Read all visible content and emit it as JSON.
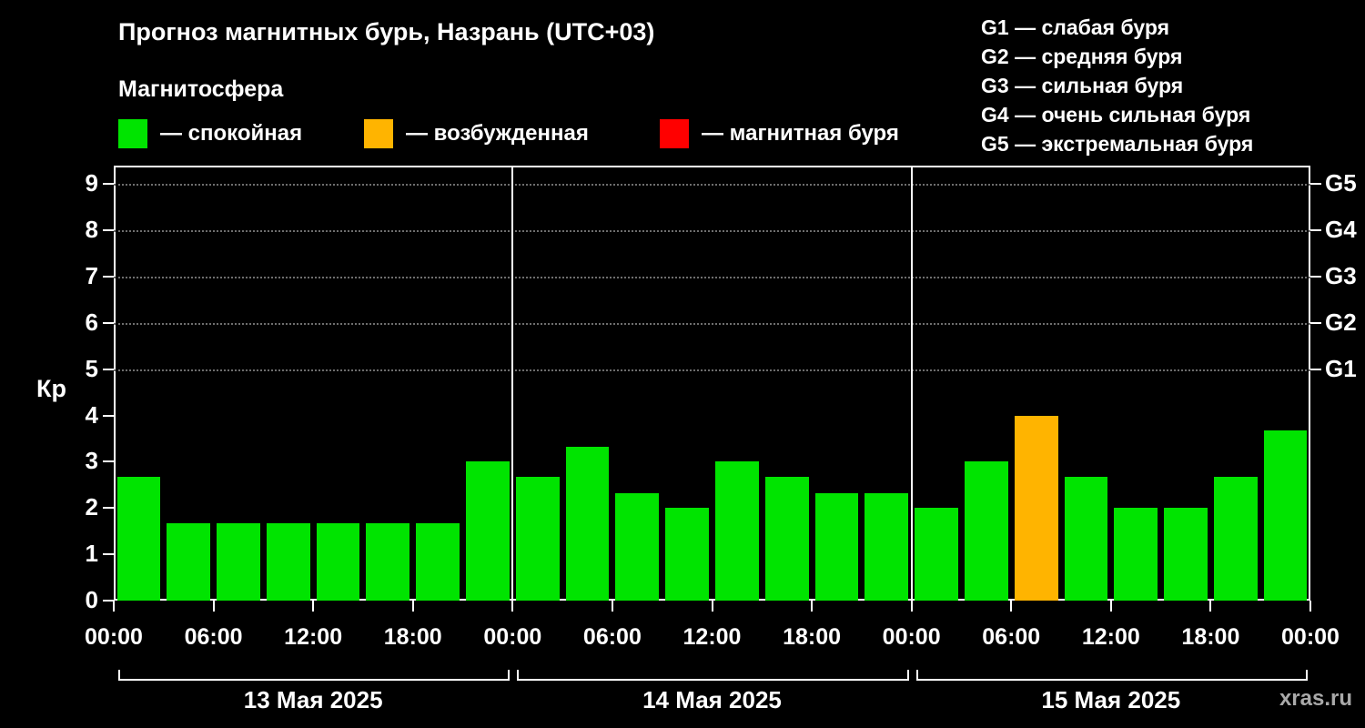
{
  "title": "Прогноз магнитных бурь, Назрань (UTC+03)",
  "subtitle": "Магнитосфера",
  "legend": {
    "items": [
      {
        "key": "quiet",
        "label": "— спокойная",
        "color": "#00e400"
      },
      {
        "key": "excited",
        "label": "— возбужденная",
        "color": "#ffb400"
      },
      {
        "key": "storm",
        "label": "— магнитная буря",
        "color": "#ff0000"
      }
    ]
  },
  "g_legend": {
    "items": [
      "G1 — слабая буря",
      "G2 — средняя буря",
      "G3 — сильная буря",
      "G4 — очень сильная буря",
      "G5 — экстремальная буря"
    ]
  },
  "watermark": "xras.ru",
  "chart_data": {
    "type": "bar",
    "title": "Прогноз магнитных бурь, Назрань (UTC+03)",
    "ylabel": "Кр",
    "ylim": [
      0,
      9.4
    ],
    "yticks": [
      0,
      1,
      2,
      3,
      4,
      5,
      6,
      7,
      8,
      9
    ],
    "right_axis_ticks": [
      {
        "value": 5,
        "label": "G1"
      },
      {
        "value": 6,
        "label": "G2"
      },
      {
        "value": 7,
        "label": "G3"
      },
      {
        "value": 8,
        "label": "G4"
      },
      {
        "value": 9,
        "label": "G5"
      }
    ],
    "gridline_values": [
      5,
      6,
      7,
      8,
      9
    ],
    "x_tick_labels": [
      "00:00",
      "06:00",
      "12:00",
      "18:00",
      "00:00",
      "06:00",
      "12:00",
      "18:00",
      "00:00",
      "06:00",
      "12:00",
      "18:00",
      "00:00"
    ],
    "bin_hours": 3,
    "color_thresholds": {
      "excited_min": 4,
      "storm_min": 5
    },
    "colors": {
      "quiet": "#00e400",
      "excited": "#ffb400",
      "storm": "#ff0000"
    },
    "days": [
      {
        "label": "13 Мая 2025",
        "values": [
          2.67,
          1.67,
          1.67,
          1.67,
          1.67,
          1.67,
          1.67,
          3.0
        ]
      },
      {
        "label": "14 Мая 2025",
        "values": [
          2.67,
          3.33,
          2.33,
          2.0,
          3.0,
          2.67,
          2.33,
          2.33
        ]
      },
      {
        "label": "15 Мая 2025",
        "values": [
          2.0,
          3.0,
          4.0,
          2.67,
          2.0,
          2.0,
          2.67,
          3.67
        ]
      }
    ]
  }
}
